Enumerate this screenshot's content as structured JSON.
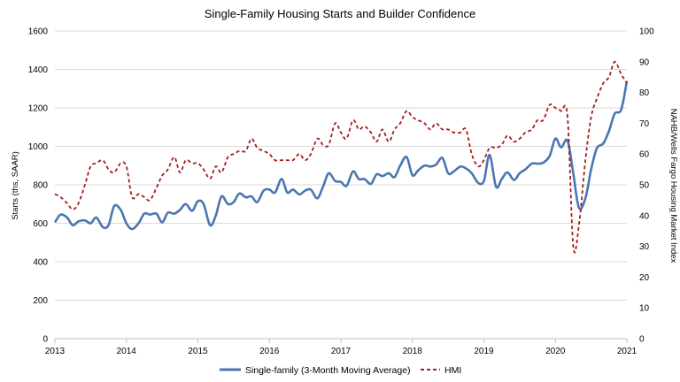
{
  "chart_data": {
    "type": "line",
    "title": "Single-Family Housing Starts and Builder Confidence",
    "ylabel": "Starts (ths, SAAR)",
    "y2label": "NAHB/Wells Fargo Housing Market Index",
    "xlim": [
      2013,
      2021
    ],
    "ylim": [
      0,
      1600
    ],
    "y2lim": [
      0,
      100
    ],
    "x_ticks": [
      "2013",
      "2014",
      "2015",
      "2016",
      "2017",
      "2018",
      "2019",
      "2020",
      "2021"
    ],
    "y_ticks": [
      "0",
      "200",
      "400",
      "600",
      "800",
      "1000",
      "1200",
      "1400",
      "1600"
    ],
    "y2_ticks": [
      "0",
      "10",
      "20",
      "30",
      "40",
      "50",
      "60",
      "70",
      "80",
      "90",
      "100"
    ],
    "grid": "horizontal",
    "legend_position": "bottom",
    "series": [
      {
        "name": "Single-family (3-Month Moving Average)",
        "axis": "left",
        "color": "#4a76b0",
        "style": "solid",
        "points": [
          [
            2013.0,
            605
          ],
          [
            2013.08,
            645
          ],
          [
            2013.17,
            630
          ],
          [
            2013.25,
            590
          ],
          [
            2013.33,
            610
          ],
          [
            2013.42,
            615
          ],
          [
            2013.5,
            600
          ],
          [
            2013.58,
            630
          ],
          [
            2013.67,
            580
          ],
          [
            2013.75,
            590
          ],
          [
            2013.83,
            690
          ],
          [
            2013.92,
            670
          ],
          [
            2014.0,
            600
          ],
          [
            2014.08,
            570
          ],
          [
            2014.17,
            600
          ],
          [
            2014.25,
            650
          ],
          [
            2014.33,
            645
          ],
          [
            2014.42,
            650
          ],
          [
            2014.5,
            605
          ],
          [
            2014.58,
            655
          ],
          [
            2014.67,
            650
          ],
          [
            2014.75,
            670
          ],
          [
            2014.83,
            700
          ],
          [
            2014.92,
            665
          ],
          [
            2015.0,
            715
          ],
          [
            2015.08,
            700
          ],
          [
            2015.17,
            590
          ],
          [
            2015.25,
            640
          ],
          [
            2015.33,
            740
          ],
          [
            2015.42,
            700
          ],
          [
            2015.5,
            710
          ],
          [
            2015.58,
            755
          ],
          [
            2015.67,
            735
          ],
          [
            2015.75,
            740
          ],
          [
            2015.83,
            710
          ],
          [
            2015.92,
            770
          ],
          [
            2016.0,
            775
          ],
          [
            2016.08,
            760
          ],
          [
            2016.17,
            830
          ],
          [
            2016.25,
            760
          ],
          [
            2016.33,
            775
          ],
          [
            2016.42,
            750
          ],
          [
            2016.5,
            770
          ],
          [
            2016.58,
            775
          ],
          [
            2016.67,
            730
          ],
          [
            2016.75,
            790
          ],
          [
            2016.83,
            860
          ],
          [
            2016.92,
            820
          ],
          [
            2017.0,
            815
          ],
          [
            2017.08,
            795
          ],
          [
            2017.17,
            870
          ],
          [
            2017.25,
            830
          ],
          [
            2017.33,
            830
          ],
          [
            2017.42,
            805
          ],
          [
            2017.5,
            855
          ],
          [
            2017.58,
            845
          ],
          [
            2017.67,
            860
          ],
          [
            2017.75,
            840
          ],
          [
            2017.83,
            900
          ],
          [
            2017.92,
            945
          ],
          [
            2018.0,
            850
          ],
          [
            2018.08,
            875
          ],
          [
            2018.17,
            900
          ],
          [
            2018.25,
            895
          ],
          [
            2018.33,
            905
          ],
          [
            2018.42,
            940
          ],
          [
            2018.5,
            860
          ],
          [
            2018.58,
            870
          ],
          [
            2018.67,
            895
          ],
          [
            2018.75,
            885
          ],
          [
            2018.83,
            860
          ],
          [
            2018.92,
            810
          ],
          [
            2019.0,
            820
          ],
          [
            2019.08,
            955
          ],
          [
            2019.17,
            790
          ],
          [
            2019.25,
            830
          ],
          [
            2019.33,
            865
          ],
          [
            2019.42,
            825
          ],
          [
            2019.5,
            860
          ],
          [
            2019.58,
            880
          ],
          [
            2019.67,
            910
          ],
          [
            2019.75,
            910
          ],
          [
            2019.83,
            915
          ],
          [
            2019.92,
            950
          ],
          [
            2020.0,
            1040
          ],
          [
            2020.08,
            995
          ],
          [
            2020.17,
            1030
          ],
          [
            2020.25,
            860
          ],
          [
            2020.33,
            680
          ],
          [
            2020.42,
            730
          ],
          [
            2020.5,
            880
          ],
          [
            2020.58,
            990
          ],
          [
            2020.67,
            1015
          ],
          [
            2020.75,
            1080
          ],
          [
            2020.83,
            1170
          ],
          [
            2020.92,
            1190
          ],
          [
            2021.0,
            1340
          ]
        ]
      },
      {
        "name": "HMI",
        "axis": "right",
        "color": "#a31f1f",
        "style": "dashed",
        "points": [
          [
            2013.0,
            47
          ],
          [
            2013.08,
            46
          ],
          [
            2013.17,
            44
          ],
          [
            2013.25,
            42
          ],
          [
            2013.33,
            44
          ],
          [
            2013.42,
            50
          ],
          [
            2013.5,
            56
          ],
          [
            2013.58,
            57
          ],
          [
            2013.67,
            58
          ],
          [
            2013.75,
            55
          ],
          [
            2013.83,
            54
          ],
          [
            2013.92,
            57
          ],
          [
            2014.0,
            56
          ],
          [
            2014.08,
            46
          ],
          [
            2014.17,
            47
          ],
          [
            2014.25,
            46
          ],
          [
            2014.33,
            45
          ],
          [
            2014.42,
            49
          ],
          [
            2014.5,
            53
          ],
          [
            2014.58,
            55
          ],
          [
            2014.67,
            59
          ],
          [
            2014.75,
            54
          ],
          [
            2014.83,
            58
          ],
          [
            2014.92,
            57
          ],
          [
            2015.0,
            57
          ],
          [
            2015.08,
            55
          ],
          [
            2015.17,
            52
          ],
          [
            2015.25,
            56
          ],
          [
            2015.33,
            54
          ],
          [
            2015.42,
            59
          ],
          [
            2015.5,
            60
          ],
          [
            2015.58,
            61
          ],
          [
            2015.67,
            61
          ],
          [
            2015.75,
            65
          ],
          [
            2015.83,
            62
          ],
          [
            2015.92,
            61
          ],
          [
            2016.0,
            60
          ],
          [
            2016.08,
            58
          ],
          [
            2016.17,
            58
          ],
          [
            2016.25,
            58
          ],
          [
            2016.33,
            58
          ],
          [
            2016.42,
            60
          ],
          [
            2016.5,
            58
          ],
          [
            2016.58,
            60
          ],
          [
            2016.67,
            65
          ],
          [
            2016.75,
            63
          ],
          [
            2016.83,
            63
          ],
          [
            2016.92,
            70
          ],
          [
            2017.0,
            67
          ],
          [
            2017.08,
            65
          ],
          [
            2017.17,
            71
          ],
          [
            2017.25,
            68
          ],
          [
            2017.33,
            69
          ],
          [
            2017.42,
            67
          ],
          [
            2017.5,
            64
          ],
          [
            2017.58,
            68
          ],
          [
            2017.67,
            64
          ],
          [
            2017.75,
            68
          ],
          [
            2017.83,
            70
          ],
          [
            2017.92,
            74
          ],
          [
            2018.0,
            72
          ],
          [
            2018.08,
            71
          ],
          [
            2018.17,
            70
          ],
          [
            2018.25,
            68
          ],
          [
            2018.33,
            70
          ],
          [
            2018.42,
            68
          ],
          [
            2018.5,
            68
          ],
          [
            2018.58,
            67
          ],
          [
            2018.67,
            67
          ],
          [
            2018.75,
            68
          ],
          [
            2018.83,
            60
          ],
          [
            2018.92,
            56
          ],
          [
            2019.0,
            58
          ],
          [
            2019.08,
            62
          ],
          [
            2019.17,
            62
          ],
          [
            2019.25,
            63
          ],
          [
            2019.33,
            66
          ],
          [
            2019.42,
            64
          ],
          [
            2019.5,
            65
          ],
          [
            2019.58,
            67
          ],
          [
            2019.67,
            68
          ],
          [
            2019.75,
            71
          ],
          [
            2019.83,
            71
          ],
          [
            2019.92,
            76
          ],
          [
            2020.0,
            75
          ],
          [
            2020.08,
            74
          ],
          [
            2020.17,
            72
          ],
          [
            2020.25,
            30
          ],
          [
            2020.33,
            37
          ],
          [
            2020.42,
            58
          ],
          [
            2020.5,
            72
          ],
          [
            2020.58,
            78
          ],
          [
            2020.67,
            83
          ],
          [
            2020.75,
            85
          ],
          [
            2020.83,
            90
          ],
          [
            2020.92,
            86
          ],
          [
            2021.0,
            83
          ]
        ]
      }
    ]
  }
}
